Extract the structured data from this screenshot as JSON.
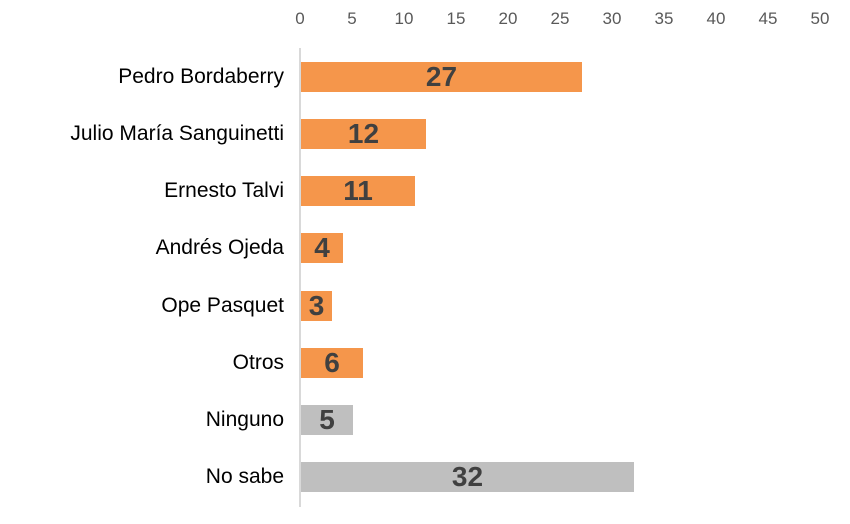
{
  "chart_data": {
    "type": "bar",
    "orientation": "horizontal",
    "title": "",
    "xlabel": "",
    "ylabel": "",
    "categories": [
      "Pedro Bordaberry",
      "Julio María Sanguinetti",
      "Ernesto Talvi",
      "Andrés Ojeda",
      "Ope Pasquet",
      "Otros",
      "Ninguno",
      "No sabe"
    ],
    "values": [
      27,
      12,
      11,
      4,
      3,
      6,
      5,
      32
    ],
    "bar_colors": [
      "#F5964B",
      "#F5964B",
      "#F5964B",
      "#F5964B",
      "#F5964B",
      "#F5964B",
      "#BFBFBF",
      "#BFBFBF"
    ],
    "x_axis": {
      "position": "top",
      "min": 0,
      "max": 50,
      "ticks": [
        0,
        5,
        10,
        15,
        20,
        25,
        30,
        35,
        40,
        45,
        50
      ]
    },
    "value_label_position": "inside-center",
    "grid": false,
    "legend_position": "none"
  },
  "colors": {
    "bar_orange": "#F5964B",
    "bar_gray": "#BFBFBF",
    "value_label": "#404040",
    "category_label": "#000000",
    "tick_label": "#595959",
    "axis_line": "#D9D9D9",
    "background": "#FFFFFF"
  }
}
